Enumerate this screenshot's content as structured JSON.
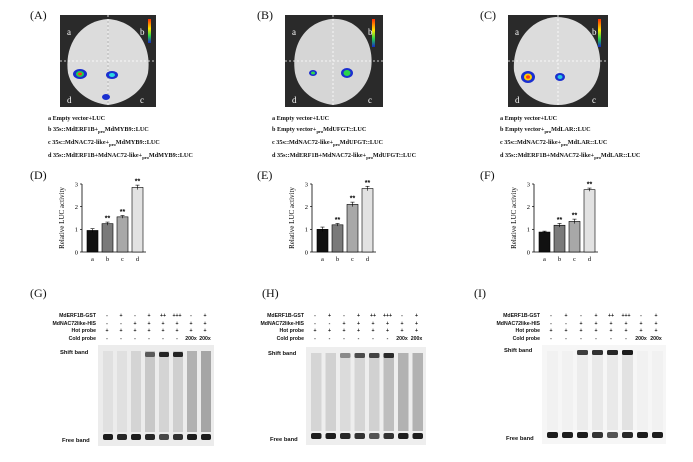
{
  "panels": {
    "A": {
      "label": "(A)",
      "quad": [
        "a",
        "b",
        "c",
        "d"
      ],
      "legend": [
        {
          "text": "a Empty vector+LUC"
        },
        {
          "pre": "b 35s::MdERF1B+",
          "sub": "pro",
          "post": "MdMYB9::LUC"
        },
        {
          "pre": "c 35s::MdNAC72-like+",
          "sub": "pro",
          "post": "MdMYB9::LUC"
        },
        {
          "pre": "d 35s::MdERF1B+MdNAC72-like+",
          "sub": "pro",
          "post": "MdMYB9::LUC"
        }
      ]
    },
    "B": {
      "label": "(B)",
      "quad": [
        "a",
        "b",
        "c",
        "d"
      ],
      "legend": [
        {
          "text": "a Empty vector+LUC"
        },
        {
          "pre": "b Empty vector+",
          "sub": "pro",
          "post": "MdUFGT::LUC"
        },
        {
          "pre": "c 35s::MdNAC72-like+",
          "sub": "pro",
          "post": "MdUFGT::LUC"
        },
        {
          "pre": "d 35s::MdERF1B+MdNAC72-like+",
          "sub": "pro",
          "post": "MdUFGT::LUC"
        }
      ]
    },
    "C": {
      "label": "(C)",
      "quad": [
        "a",
        "b",
        "c",
        "d"
      ],
      "legend": [
        {
          "text": "a Empty vector+LUC"
        },
        {
          "pre": "b Empty vector+",
          "sub": "pro",
          "post": "MdLAR::LUC"
        },
        {
          "pre": "c 35s::MdNAC72-like+",
          "sub": "pro",
          "post": "MdLAR::LUC"
        },
        {
          "pre": "d 35s::MdERF1B+MdNAC72-like+",
          "sub": "pro",
          "post": "MdLAR::LUC"
        }
      ]
    },
    "D": {
      "label": "(D)"
    },
    "E": {
      "label": "(E)"
    },
    "F": {
      "label": "(F)"
    },
    "G": {
      "label": "(G)"
    },
    "H": {
      "label": "(H)"
    },
    "I": {
      "label": "(I)"
    }
  },
  "chart_data": [
    {
      "type": "bar",
      "panel": "D",
      "categories": [
        "a",
        "b",
        "c",
        "d"
      ],
      "values": [
        0.95,
        1.25,
        1.55,
        2.85
      ],
      "errors": [
        0.08,
        0.07,
        0.06,
        0.1
      ],
      "significance": [
        "",
        "**",
        "**",
        "**"
      ],
      "colors": [
        "#111111",
        "#7a7a7a",
        "#a8a8a8",
        "#e2e2e2"
      ],
      "ylabel": "Relative LUC activity",
      "ylim": [
        0,
        3
      ],
      "yticks": [
        "0",
        "1",
        "2",
        "3"
      ]
    },
    {
      "type": "bar",
      "panel": "E",
      "categories": [
        "a",
        "b",
        "c",
        "d"
      ],
      "values": [
        1.0,
        1.2,
        2.1,
        2.8
      ],
      "errors": [
        0.1,
        0.06,
        0.1,
        0.1
      ],
      "significance": [
        "",
        "**",
        "**",
        "**"
      ],
      "colors": [
        "#111111",
        "#7a7a7a",
        "#a8a8a8",
        "#e2e2e2"
      ],
      "ylabel": "Relative LUC activity",
      "ylim": [
        0,
        3
      ],
      "yticks": [
        "0",
        "1",
        "2",
        "3"
      ]
    },
    {
      "type": "bar",
      "panel": "F",
      "categories": [
        "a",
        "b",
        "c",
        "d"
      ],
      "values": [
        0.88,
        1.18,
        1.35,
        2.75
      ],
      "errors": [
        0.04,
        0.08,
        0.1,
        0.07
      ],
      "significance": [
        "",
        "**",
        "**",
        "**"
      ],
      "colors": [
        "#111111",
        "#7a7a7a",
        "#a8a8a8",
        "#e2e2e2"
      ],
      "ylabel": "Relative LUC activity",
      "ylim": [
        0,
        3
      ],
      "yticks": [
        "0",
        "1",
        "2",
        "3"
      ]
    }
  ],
  "emsa": {
    "row_labels": [
      "MdERF1B-GST",
      "MdNAC72like-HIS",
      "Hot probe",
      "Cold probe"
    ],
    "lanes": [
      [
        "-",
        "+",
        "-",
        "+",
        "++",
        "+++",
        "-",
        "+"
      ],
      [
        "-",
        "-",
        "+",
        "+",
        "+",
        "+",
        "+",
        "+"
      ],
      [
        "+",
        "+",
        "+",
        "+",
        "+",
        "+",
        "+",
        "+"
      ],
      [
        "-",
        "-",
        "-",
        "-",
        "-",
        "-",
        "200x",
        "200x"
      ]
    ],
    "shift_label": "Shift band",
    "free_label": "Free band"
  }
}
